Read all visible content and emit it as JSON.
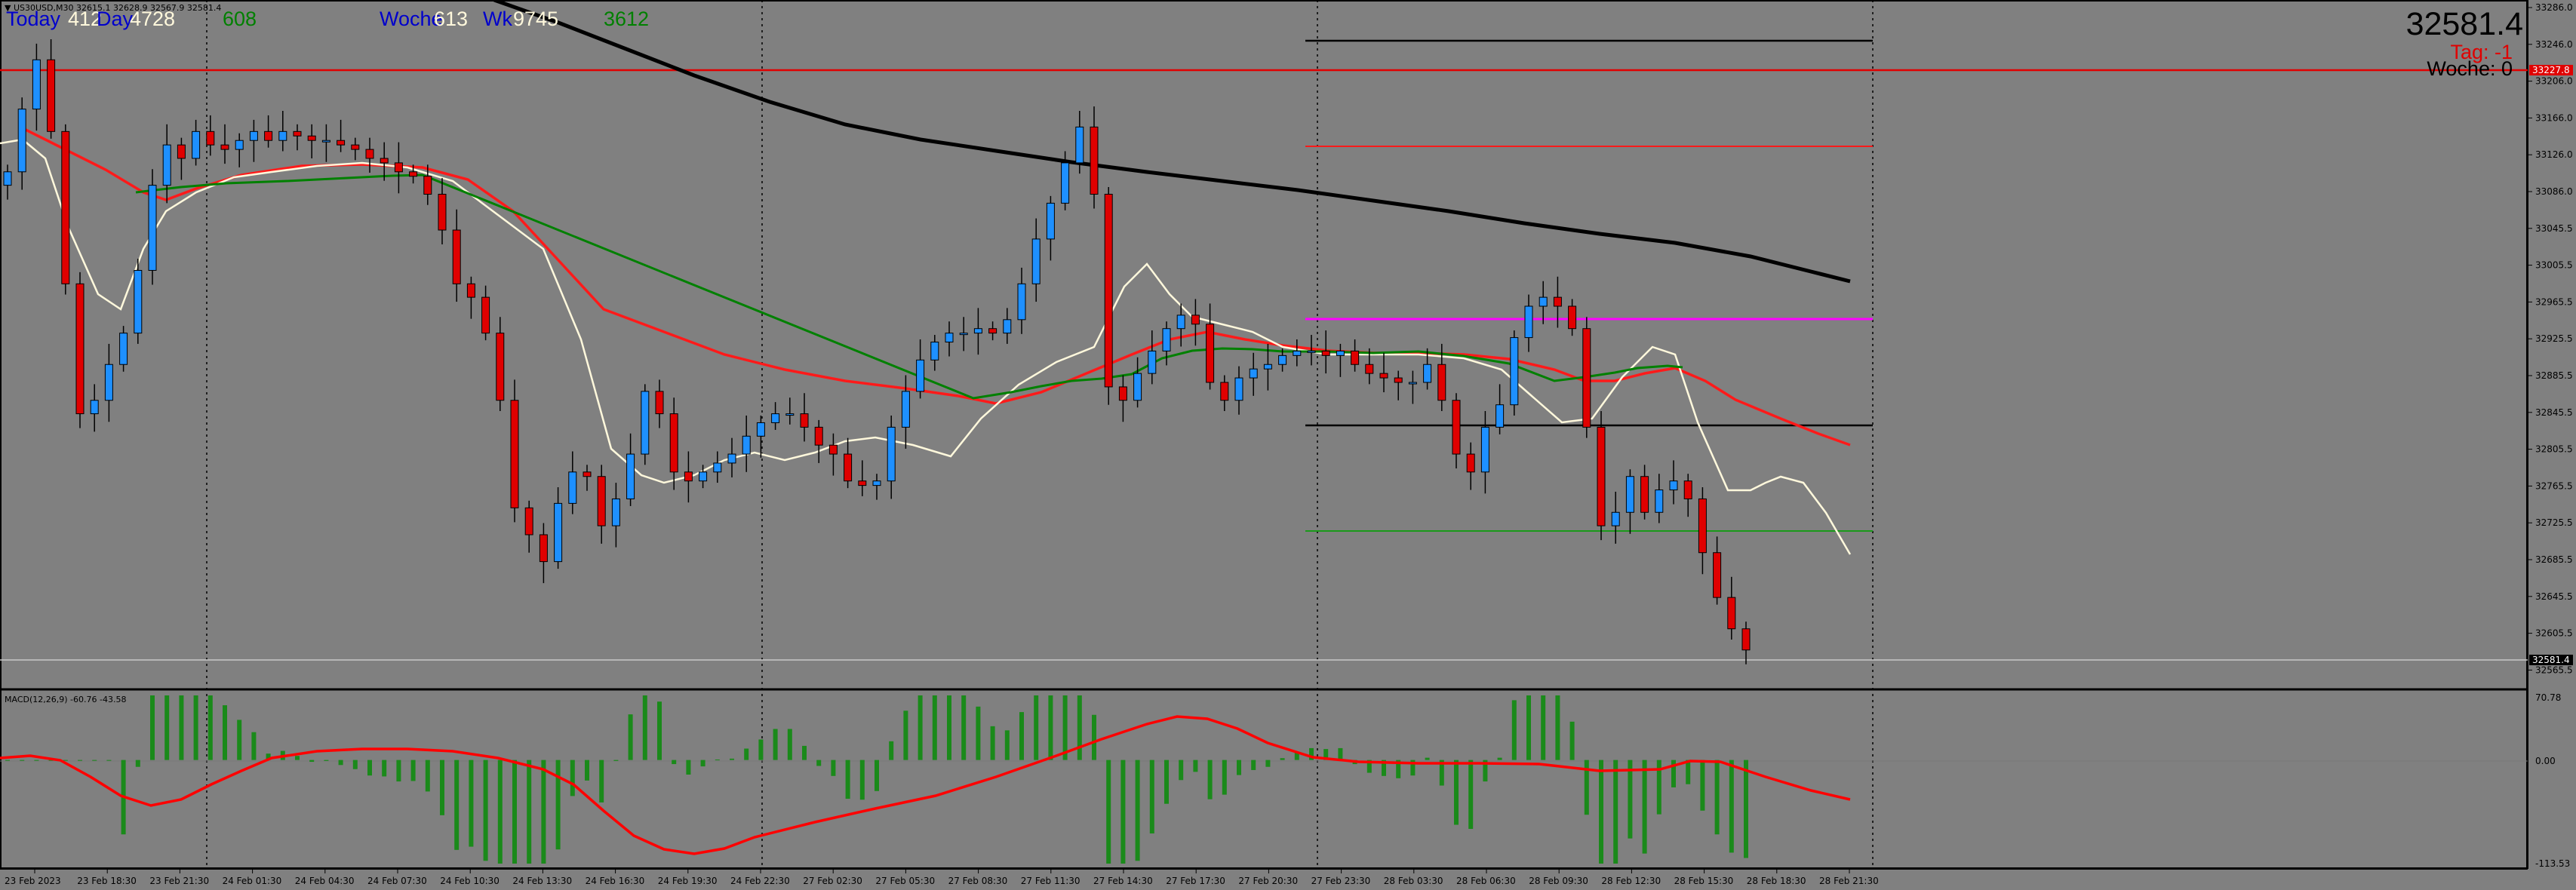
{
  "window": {
    "symbol_line": "▼ US30USD,M30 32615.1 32628.9 32567.9 32581.4",
    "macd_label": "MACD(12,26,9) -60.76 -43.58"
  },
  "hud": {
    "today_label": "Today",
    "today_values": "412",
    "day_label": "Day",
    "day_values": "4728",
    "day_extra": "608",
    "week_label": "Woche",
    "week_value_1": "613",
    "week_wk": "Wk",
    "week_value_2": "9745",
    "week_extra": "3612",
    "price": "32581.4",
    "tag": "Tag: -1",
    "woche": "Woche: 0"
  },
  "price_axis": {
    "ticks": [
      "33286.0",
      "33246.0",
      "33206.0",
      "33166.0",
      "33126.0",
      "33086.0",
      "33045.5",
      "33005.5",
      "32965.5",
      "32925.5",
      "32885.5",
      "32845.5",
      "32805.5",
      "32765.5",
      "32725.5",
      "32685.5",
      "32645.5",
      "32605.5",
      "32565.5"
    ],
    "current_price_label": "32581.4",
    "red_line_label": "33227.8"
  },
  "macd_axis": {
    "ticks": [
      "70.78",
      "0.00",
      "-113.53"
    ]
  },
  "time_axis": {
    "labels": [
      "23 Feb 2023",
      "23 Feb 18:30",
      "23 Feb 21:30",
      "24 Feb 01:30",
      "24 Feb 04:30",
      "24 Feb 07:30",
      "24 Feb 10:30",
      "24 Feb 13:30",
      "24 Feb 16:30",
      "24 Feb 19:30",
      "24 Feb 22:30",
      "27 Feb 02:30",
      "27 Feb 05:30",
      "27 Feb 08:30",
      "27 Feb 11:30",
      "27 Feb 14:30",
      "27 Feb 17:30",
      "27 Feb 20:30",
      "27 Feb 23:30",
      "28 Feb 03:30",
      "28 Feb 06:30",
      "28 Feb 09:30",
      "28 Feb 12:30",
      "28 Feb 15:30",
      "28 Feb 18:30",
      "28 Feb 21:30"
    ]
  },
  "colors": {
    "background": "#808080",
    "bull": "#1e90ff",
    "bear": "#e00000",
    "ma_slow": "#000000",
    "ma_mid": "#ff1a1a",
    "ma_fast": "#fff8dc",
    "ma_green": "#008000",
    "magenta": "#ff00ff",
    "macd_hist": "#1a8a1a",
    "macd_signal": "#ff0000"
  },
  "chart_data": {
    "type": "candlestick",
    "ylim": [
      32545,
      33300
    ],
    "macd_ylim": [
      -113.53,
      70.78
    ],
    "closes": [
      33115,
      33185,
      33240,
      33160,
      32990,
      32845,
      32860,
      32900,
      32935,
      33005,
      33100,
      33145,
      33130,
      33160,
      33145,
      33140,
      33150,
      33160,
      33150,
      33160,
      33155,
      33150,
      33150,
      33145,
      33140,
      33130,
      33125,
      33115,
      33110,
      33090,
      33050,
      32990,
      32975,
      32935,
      32860,
      32740,
      32710,
      32680,
      32745,
      32780,
      32775,
      32720,
      32750,
      32800,
      32870,
      32845,
      32780,
      32770,
      32780,
      32790,
      32800,
      32820,
      32835,
      32845,
      32845,
      32830,
      32810,
      32800,
      32770,
      32765,
      32770,
      32830,
      32870,
      32905,
      32925,
      32935,
      32935,
      32940,
      32935,
      32950,
      32990,
      33040,
      33080,
      33125,
      33165,
      33090,
      32875,
      32860,
      32890,
      32915,
      32940,
      32955,
      32945,
      32880,
      32860,
      32885,
      32895,
      32900,
      32910,
      32915,
      32915,
      32910,
      32915,
      32900,
      32890,
      32885,
      32880,
      32880,
      32900,
      32860,
      32800,
      32780,
      32830,
      32855,
      32930,
      32965,
      32975,
      32965,
      32940,
      32830,
      32720,
      32735,
      32775,
      32735,
      32760,
      32770,
      32750,
      32690,
      32640,
      32605,
      32581.4
    ]
  }
}
